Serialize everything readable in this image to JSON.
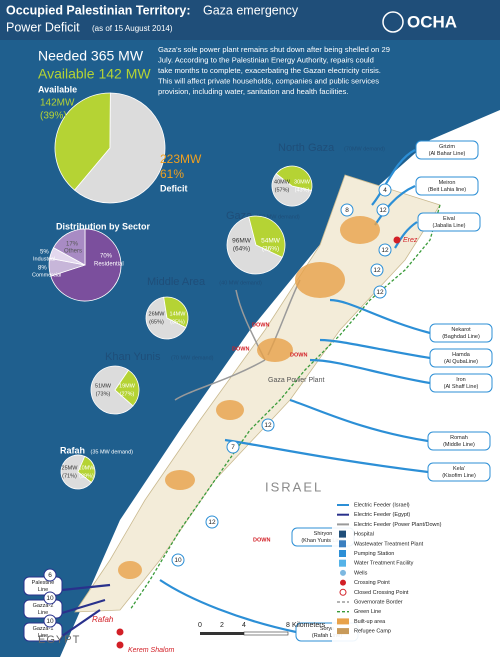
{
  "header": {
    "title": "Occupied Palestinian Territory:",
    "title_rest": "Gaza emergency",
    "subtitle": "Power Deficit",
    "date": "(as of 15 August 2014)",
    "logo": "OCHA"
  },
  "summary": {
    "needed": "Needed 365 MW",
    "available": "Available 142 MW",
    "description": [
      "Gaza's sole power plant remains shut down after being shelled on 29",
      "July. According to the Palestinian Energy Authority, repairs could",
      "take months to complete, exacerbating the Gazan electricity crisis.",
      "This will affect private households, companies and public services",
      "provision, including water, sanitation and health facilities."
    ]
  },
  "main_pie": {
    "slices": [
      {
        "name": "Available",
        "label": "142MW",
        "value": 39,
        "value_label": "(39%)",
        "color": "#b5d334"
      },
      {
        "name": "Deficit",
        "label": "223MW",
        "value": 61,
        "value_label": "61%",
        "color": "#dcdcdc"
      }
    ]
  },
  "sector_pie": {
    "title": "Distribution by Sector",
    "slices": [
      {
        "name": "Residential",
        "value": 70,
        "value_label": "70%",
        "color": "#7b4f9d"
      },
      {
        "name": "Commercial",
        "value": 8,
        "value_label": "8%",
        "color": "#c7b6d9"
      },
      {
        "name": "Industrial",
        "value": 5,
        "value_label": "5%",
        "color": "#e3d8ee"
      },
      {
        "name": "Others",
        "value": 17,
        "value_label": "17%",
        "color": "#a88bc4"
      }
    ]
  },
  "regions": [
    {
      "name": "North Gaza",
      "demand": "(70MW demand)",
      "slices": [
        {
          "label": "40MW",
          "value": 57,
          "value_label": "(57%)",
          "color": "#dcdcdc"
        },
        {
          "label": "30MW",
          "value": 43,
          "value_label": "(43%)",
          "color": "#b5d334"
        }
      ]
    },
    {
      "name": "Gaza",
      "demand": "(150 MW demand)",
      "slices": [
        {
          "label": "96MW",
          "value": 64,
          "value_label": "(64%)",
          "color": "#dcdcdc"
        },
        {
          "label": "54MW",
          "value": 36,
          "value_label": "(36%)",
          "color": "#b5d334"
        }
      ]
    },
    {
      "name": "Middle Area",
      "demand": "(40 MW demand)",
      "slices": [
        {
          "label": "26MW",
          "value": 65,
          "value_label": "(65%)",
          "color": "#dcdcdc"
        },
        {
          "label": "14MW",
          "value": 35,
          "value_label": "(35%)",
          "color": "#b5d334"
        }
      ]
    },
    {
      "name": "Khan Yunis",
      "demand": "(70 MW demand)",
      "slices": [
        {
          "label": "51MW",
          "value": 73,
          "value_label": "(73%)",
          "color": "#dcdcdc"
        },
        {
          "label": "19MW",
          "value": 27,
          "value_label": "(27%)",
          "color": "#b5d334"
        }
      ]
    },
    {
      "name": "Rafah",
      "demand": "(35 MW demand)",
      "slices": [
        {
          "label": "25MW",
          "value": 71,
          "value_label": "(71%)",
          "color": "#dcdcdc"
        },
        {
          "label": "10MW",
          "value": 29,
          "value_label": "(29%)",
          "color": "#b5d334"
        }
      ]
    }
  ],
  "feeders": [
    {
      "name": "Grizim",
      "line": "(Al Bahar Line)"
    },
    {
      "name": "Meiron",
      "line": "(Beit Lahia line)"
    },
    {
      "name": "Eival",
      "line": "(Jabalia Line)"
    },
    {
      "name": "Nekarot",
      "line": "(Baghdad Line)"
    },
    {
      "name": "Hamda",
      "line": "(Al QubaLine)"
    },
    {
      "name": "Iron",
      "line": "(Al Shaff Line)"
    },
    {
      "name": "Romah",
      "line": "(Middle Line)"
    },
    {
      "name": "Kela'",
      "line": "(Kisofim Line)"
    },
    {
      "name": "Shiryon",
      "line": "(Khan Yunis Line)"
    },
    {
      "name": "Sorya",
      "line": "(Rafah Line)"
    },
    {
      "name": "Palestine",
      "line": "Line"
    },
    {
      "name": "Gazza-2",
      "line": "Line"
    },
    {
      "name": "Gazza-1",
      "line": "Line"
    }
  ],
  "capacities": [
    "12",
    "4",
    "8",
    "12",
    "12",
    "12",
    "7",
    "12",
    "12",
    "10",
    "6",
    "10",
    "10"
  ],
  "status": [
    "DOWN",
    "DOWN",
    "DOWN",
    "DOWN"
  ],
  "places": {
    "israel": "ISRAEL",
    "egypt": "EGYPT",
    "rafah": "Rafah",
    "kerem_shalom": "Kerem Shalom",
    "erez": "Erez",
    "plant": "Gaza Power Plant"
  },
  "legend": [
    "Electric Feeder (Israel)",
    "Electric Feeder (Egypt)",
    "Electric Feeder (Power Plant/Down)",
    "Hospital",
    "Wastewater Treatment Plant",
    "Pumping Station",
    "Water Treatment Facility",
    "Wells",
    "Crossing Point",
    "Closed Crossing Point",
    "Governorate Border",
    "Green Line",
    "Built-up area",
    "Refugee Camp"
  ],
  "scale": {
    "ticks": [
      "0",
      "2",
      "4",
      "8"
    ],
    "unit": "Kilometers"
  }
}
